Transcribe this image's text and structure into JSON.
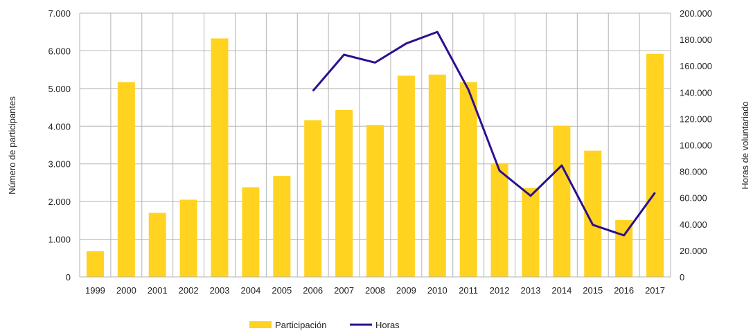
{
  "chart_data": {
    "type": "bar",
    "categories": [
      "1999",
      "2000",
      "2001",
      "2002",
      "2003",
      "2004",
      "2005",
      "2006",
      "2007",
      "2008",
      "2009",
      "2010",
      "2011",
      "2012",
      "2013",
      "2014",
      "2015",
      "2016",
      "2017"
    ],
    "series": [
      {
        "name": "Participación",
        "type": "bar",
        "axis": "left",
        "color": "#FFD320",
        "values": [
          680,
          5170,
          1700,
          2050,
          6330,
          2380,
          2680,
          4160,
          4430,
          4030,
          5340,
          5370,
          5170,
          3020,
          2360,
          4010,
          3350,
          1510,
          5920
        ]
      },
      {
        "name": "Horas",
        "type": "line",
        "axis": "right",
        "color": "#2D0F8E",
        "values": [
          null,
          null,
          null,
          null,
          null,
          null,
          null,
          141000,
          168500,
          162500,
          177000,
          185800,
          142000,
          80500,
          61500,
          84500,
          39500,
          31500,
          64000
        ]
      }
    ],
    "ylabel": "Número de participantes",
    "y2label": "Horas de voluntariado",
    "ylim": [
      0,
      7000
    ],
    "y2lim": [
      0,
      200000
    ],
    "yticks": [
      "0",
      "1.000",
      "2.000",
      "3.000",
      "4.000",
      "5.000",
      "6.000",
      "7.000"
    ],
    "y2ticks": [
      "0",
      "20.000",
      "40.000",
      "60.000",
      "80.000",
      "100.000",
      "120.000",
      "140.000",
      "160.000",
      "180.000",
      "200.000"
    ],
    "grid": true,
    "legend": "bottom"
  }
}
